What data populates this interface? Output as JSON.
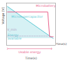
{
  "chart_data": {
    "type": "line",
    "xlabel": "Time(s)",
    "ylabel": "Voltage (V)",
    "xlim": [
      -0.02,
      1.05
    ],
    "ylim": [
      -0.15,
      1.08
    ],
    "xticks": [],
    "yticks": [],
    "tick_labels": false,
    "grid": false,
    "series": [
      {
        "name": "Energy\navailable",
        "type": "area",
        "color": "#5bc8d4",
        "x": [
          0,
          1.0
        ],
        "values": [
          0.98,
          0.05
        ],
        "lower": [
          0.05,
          0.05
        ]
      },
      {
        "name": "Microsupercapacitor",
        "color": "#5bc8d4",
        "x": [
          0,
          1.0
        ],
        "values": [
          0.98,
          0.05
        ]
      },
      {
        "name": "Microbattery",
        "color": "#e8608a",
        "x": [
          0,
          0.88,
          0.92,
          1.0
        ],
        "values": [
          0.82,
          0.82,
          0.1,
          0.1
        ]
      },
      {
        "name": "V_min",
        "color": "#b0a0c0",
        "line_style": "dashed",
        "x": [
          0,
          0.88
        ],
        "values": [
          0.12,
          0.12
        ]
      }
    ],
    "annotations": [
      {
        "text": "Usable energy",
        "color": "#e8608a"
      },
      {
        "text": "Time(s)"
      }
    ]
  }
}
